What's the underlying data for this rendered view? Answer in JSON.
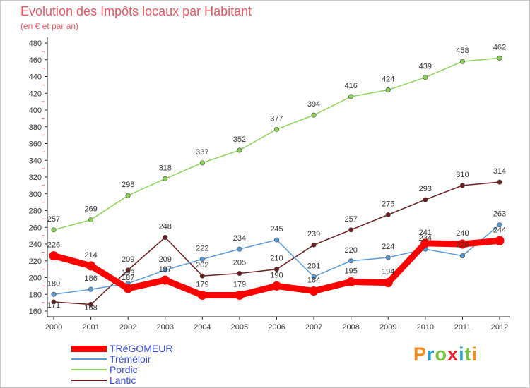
{
  "title": "Evolution des Impôts locaux par Habitant",
  "subtitle": "(en € et par an)",
  "logo": {
    "letters": [
      "P",
      "r",
      "o",
      "x",
      "i",
      "t",
      "i"
    ],
    "colors": [
      "#f28c1e",
      "#2a9fd6",
      "#7cc242",
      "#e8262c",
      "#2a9fd6",
      "#7cc242",
      "#f28c1e"
    ]
  },
  "chart_data": {
    "type": "line",
    "title": "Evolution des Impôts locaux par Habitant",
    "subtitle": "(en € et par an)",
    "xlabel": "",
    "ylabel": "",
    "x": [
      "2000",
      "2001",
      "2002",
      "2003",
      "2004",
      "2005",
      "2006",
      "2007",
      "2008",
      "2009",
      "2010",
      "2011",
      "2012"
    ],
    "ylim": [
      160,
      480
    ],
    "yticks": [
      160,
      180,
      200,
      220,
      240,
      260,
      280,
      300,
      320,
      340,
      360,
      380,
      400,
      420,
      440,
      460,
      480
    ],
    "grid": false,
    "legend_position": "bottom-left",
    "series": [
      {
        "name": "TRéGOMEUR",
        "color": "#ff0000",
        "values": [
          226,
          214,
          187,
          197,
          179,
          179,
          190,
          184,
          195,
          194,
          241,
          240,
          244
        ]
      },
      {
        "name": "Tréméloir",
        "color": "#5b9bd5",
        "values": [
          180,
          186,
          193,
          209,
          222,
          234,
          245,
          201,
          220,
          224,
          234,
          226,
          263
        ]
      },
      {
        "name": "Pordic",
        "color": "#8ed45a",
        "values": [
          257,
          269,
          298,
          318,
          337,
          352,
          377,
          394,
          416,
          424,
          439,
          458,
          462
        ]
      },
      {
        "name": "Lantic",
        "color": "#6b1e1e",
        "values": [
          171,
          168,
          209,
          248,
          202,
          205,
          210,
          239,
          257,
          275,
          293,
          310,
          314
        ]
      }
    ],
    "labels": [
      {
        "value": "226",
        "point": [
          0,
          226
        ],
        "dy": -12
      },
      {
        "value": "214",
        "point": [
          1,
          214
        ],
        "dy": -12
      },
      {
        "value": "187",
        "point": [
          2,
          187
        ],
        "dy": -12
      },
      {
        "value": "197",
        "point": [
          3,
          197
        ],
        "dy": -12
      },
      {
        "value": "179",
        "point": [
          4,
          179
        ],
        "dy": -12
      },
      {
        "value": "179",
        "point": [
          5,
          179
        ],
        "dy": -12
      },
      {
        "value": "190",
        "point": [
          6,
          190
        ],
        "dy": -12
      },
      {
        "value": "184",
        "point": [
          7,
          184
        ],
        "dy": -12
      },
      {
        "value": "195",
        "point": [
          8,
          195
        ],
        "dy": -12
      },
      {
        "value": "194",
        "point": [
          9,
          194
        ],
        "dy": -12
      },
      {
        "value": "241",
        "point": [
          10,
          241
        ],
        "dy": -12
      },
      {
        "value": "240",
        "point": [
          11,
          240
        ],
        "dy": -12
      },
      {
        "value": "244",
        "point": [
          12,
          244
        ],
        "dy": -12
      },
      {
        "value": "180",
        "point": [
          0,
          180
        ],
        "dy": -12
      },
      {
        "value": "186",
        "point": [
          1,
          186
        ],
        "dy": -12
      },
      {
        "value": "193",
        "point": [
          2,
          193
        ],
        "dy": -12
      },
      {
        "value": "209",
        "point": [
          3,
          209
        ],
        "dy": -12
      },
      {
        "value": "222",
        "point": [
          4,
          222
        ],
        "dy": -12
      },
      {
        "value": "234",
        "point": [
          5,
          234
        ],
        "dy": -12
      },
      {
        "value": "245",
        "point": [
          6,
          245
        ],
        "dy": -12
      },
      {
        "value": "201",
        "point": [
          7,
          201
        ],
        "dy": -12
      },
      {
        "value": "220",
        "point": [
          8,
          220
        ],
        "dy": -12
      },
      {
        "value": "224",
        "point": [
          9,
          224
        ],
        "dy": -12
      },
      {
        "value": "234",
        "point": [
          10,
          234
        ],
        "dy": -12
      },
      {
        "value": "226",
        "point": [
          11,
          226
        ],
        "dy": -12
      },
      {
        "value": "263",
        "point": [
          12,
          263
        ],
        "dy": -12
      },
      {
        "value": "257",
        "point": [
          0,
          257
        ],
        "dy": -12
      },
      {
        "value": "269",
        "point": [
          1,
          269
        ],
        "dy": -12
      },
      {
        "value": "298",
        "point": [
          2,
          298
        ],
        "dy": -12
      },
      {
        "value": "318",
        "point": [
          3,
          318
        ],
        "dy": -12
      },
      {
        "value": "337",
        "point": [
          4,
          337
        ],
        "dy": -12
      },
      {
        "value": "352",
        "point": [
          5,
          352
        ],
        "dy": -12
      },
      {
        "value": "377",
        "point": [
          6,
          377
        ],
        "dy": -12
      },
      {
        "value": "394",
        "point": [
          7,
          394
        ],
        "dy": -12
      },
      {
        "value": "416",
        "point": [
          8,
          416
        ],
        "dy": -12
      },
      {
        "value": "424",
        "point": [
          9,
          424
        ],
        "dy": -12
      },
      {
        "value": "439",
        "point": [
          10,
          439
        ],
        "dy": -12
      },
      {
        "value": "458",
        "point": [
          11,
          458
        ],
        "dy": -12
      },
      {
        "value": "462",
        "point": [
          12,
          462
        ],
        "dy": -12
      },
      {
        "value": "171",
        "point": [
          0,
          171
        ],
        "dy": 8
      },
      {
        "value": "168",
        "point": [
          1,
          168
        ],
        "dy": 8
      },
      {
        "value": "209",
        "point": [
          2,
          209
        ],
        "dy": -12
      },
      {
        "value": "248",
        "point": [
          3,
          248
        ],
        "dy": -12
      },
      {
        "value": "202",
        "point": [
          4,
          202
        ],
        "dy": -12
      },
      {
        "value": "205",
        "point": [
          5,
          205
        ],
        "dy": -12
      },
      {
        "value": "210",
        "point": [
          6,
          210
        ],
        "dy": -12
      },
      {
        "value": "239",
        "point": [
          7,
          239
        ],
        "dy": -12
      },
      {
        "value": "257",
        "point": [
          8,
          257
        ],
        "dy": -12
      },
      {
        "value": "275",
        "point": [
          9,
          275
        ],
        "dy": -12
      },
      {
        "value": "293",
        "point": [
          10,
          293
        ],
        "dy": -12
      },
      {
        "value": "310",
        "point": [
          11,
          310
        ],
        "dy": -12
      },
      {
        "value": "314",
        "point": [
          12,
          314
        ],
        "dy": -12
      }
    ]
  }
}
